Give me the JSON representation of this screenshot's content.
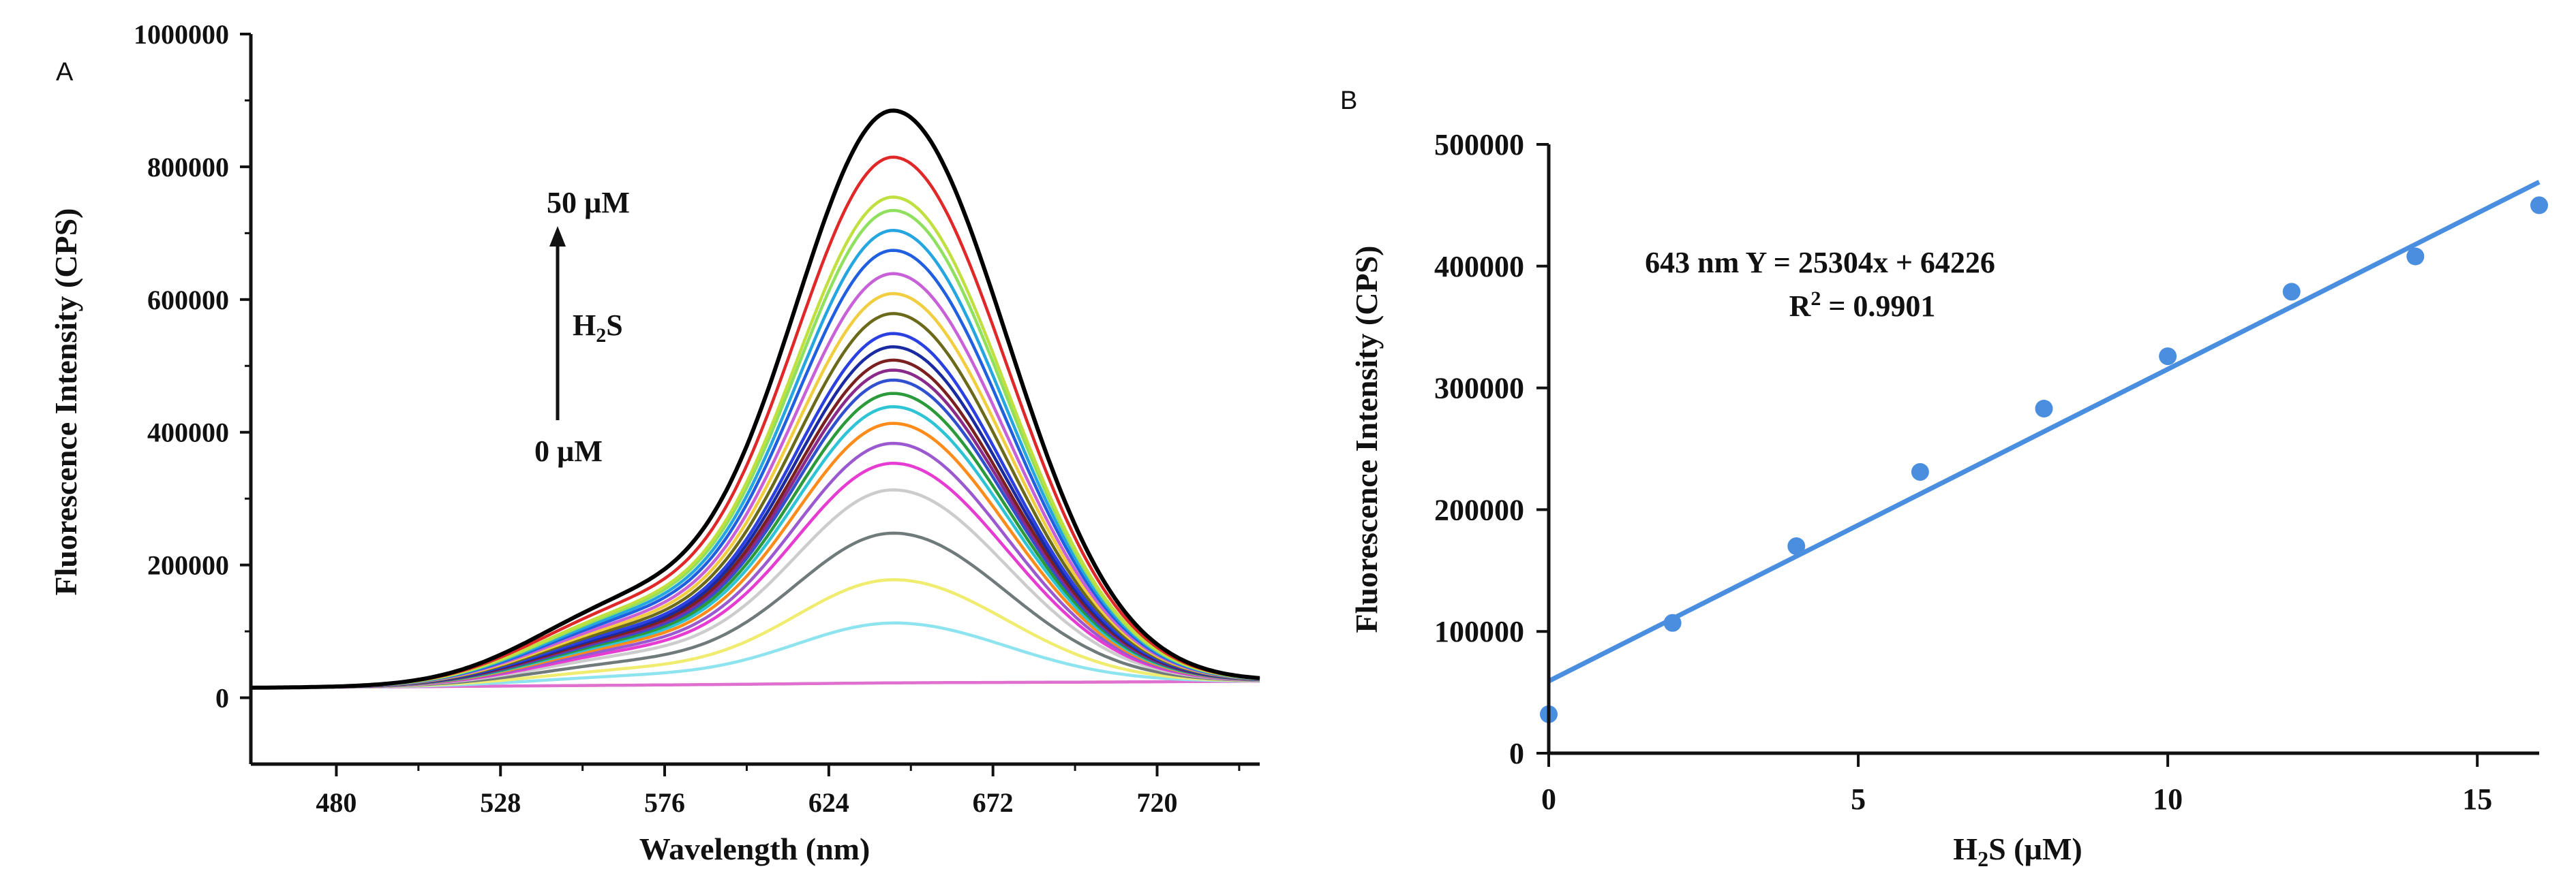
{
  "chart_data": [
    {
      "panel": "A",
      "type": "line",
      "xlabel": "Wavelength (nm)",
      "ylabel": "Fluorescence Intensity (CPS)",
      "xlim": [
        455,
        750
      ],
      "ylim": [
        -100000,
        1000000
      ],
      "xticks": [
        480,
        528,
        576,
        624,
        672,
        720
      ],
      "yticks": [
        0,
        200000,
        400000,
        600000,
        800000,
        1000000
      ],
      "peak_wavelength": 643,
      "baseline_at_455": 15000,
      "baseline_at_750": 25000,
      "series": [
        {
          "name": "0 µM",
          "color": "#e070d0",
          "peak": 15000
        },
        {
          "name": "s2",
          "color": "#8ee4ee",
          "peak": 105000
        },
        {
          "name": "s3",
          "color": "#f0ec70",
          "peak": 170000
        },
        {
          "name": "s4",
          "color": "#707a7a",
          "peak": 240000
        },
        {
          "name": "s5",
          "color": "#cccccc",
          "peak": 305000
        },
        {
          "name": "s6",
          "color": "#e63cd2",
          "peak": 345000
        },
        {
          "name": "s7",
          "color": "#9b59d0",
          "peak": 375000
        },
        {
          "name": "s8",
          "color": "#ff8c1a",
          "peak": 405000
        },
        {
          "name": "s9",
          "color": "#2ec4d6",
          "peak": 430000
        },
        {
          "name": "s10",
          "color": "#2a9a3a",
          "peak": 450000
        },
        {
          "name": "s11",
          "color": "#3050d0",
          "peak": 470000
        },
        {
          "name": "s12",
          "color": "#8a2a8a",
          "peak": 485000
        },
        {
          "name": "s13",
          "color": "#7a2020",
          "peak": 500000
        },
        {
          "name": "s14",
          "color": "#1a2aa0",
          "peak": 520000
        },
        {
          "name": "s15",
          "color": "#2a40e0",
          "peak": 540000
        },
        {
          "name": "s16",
          "color": "#6a6a1a",
          "peak": 570000
        },
        {
          "name": "s17",
          "color": "#f0ce40",
          "peak": 600000
        },
        {
          "name": "s18",
          "color": "#c860d8",
          "peak": 630000
        },
        {
          "name": "s19",
          "color": "#2060e0",
          "peak": 665000
        },
        {
          "name": "s20",
          "color": "#26a6e0",
          "peak": 695000
        },
        {
          "name": "s21",
          "color": "#90e060",
          "peak": 725000
        },
        {
          "name": "s22",
          "color": "#c0e040",
          "peak": 745000
        },
        {
          "name": "s23",
          "color": "#e02828",
          "peak": 805000
        },
        {
          "name": "50 µM",
          "color": "#000000",
          "peak": 875000
        }
      ],
      "annotations": {
        "top": "50 µM",
        "bottom": "0 µM",
        "middle_base": "H",
        "middle_sub": "2",
        "middle_tail": "S"
      }
    },
    {
      "panel": "B",
      "type": "scatter",
      "xlabel_base": "H",
      "xlabel_sub": "2",
      "xlabel_tail": "S (µM)",
      "ylabel": "Fluorescence Intensity (CPS)",
      "xlim": [
        0,
        16
      ],
      "ylim": [
        0,
        500000
      ],
      "xticks": [
        0,
        5,
        10,
        15
      ],
      "yticks": [
        0,
        100000,
        200000,
        300000,
        400000,
        500000
      ],
      "x": [
        0,
        2,
        4,
        6,
        8,
        10,
        12,
        14,
        16
      ],
      "y": [
        32000,
        107000,
        170000,
        231000,
        283000,
        326000,
        379000,
        408000,
        450000
      ],
      "fit": {
        "slope": 25304,
        "intercept": 64226
      },
      "fit_line_range": [
        0,
        16
      ],
      "equation": "643 nm Y = 25304x + 64226",
      "r2_base": "R",
      "r2_sup": "2",
      "r2_tail": " = 0.9901",
      "color": "#4a8ee0"
    }
  ],
  "panel_labels": {
    "a": "A",
    "b": "B"
  }
}
